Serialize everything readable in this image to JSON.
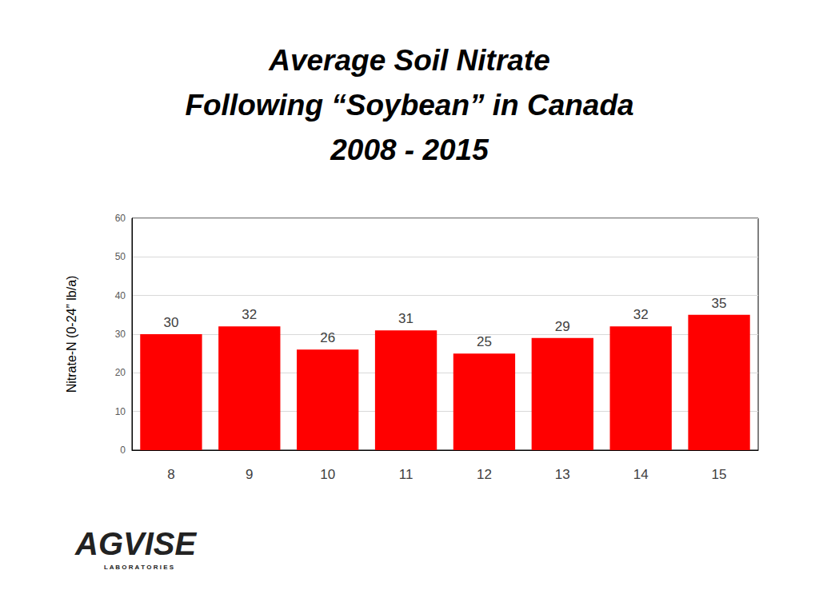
{
  "chart_data": {
    "type": "bar",
    "title": "Average Soil Nitrate\nFollowing “Soybean” in Canada\n2008 - 2015",
    "y_label": "Nitrate-N (0-24” lb/a)",
    "categories": [
      "8",
      "9",
      "10",
      "11",
      "12",
      "13",
      "14",
      "15"
    ],
    "values": [
      30,
      32,
      26,
      31,
      25,
      29,
      32,
      35
    ],
    "color": "#ff0000",
    "ylim": [
      0,
      60
    ],
    "yticks": [
      0,
      10,
      20,
      30,
      40,
      50,
      60
    ],
    "grid": true,
    "data_labels": true,
    "annotations": [
      "AGVISE",
      "LABORATORIES"
    ]
  }
}
